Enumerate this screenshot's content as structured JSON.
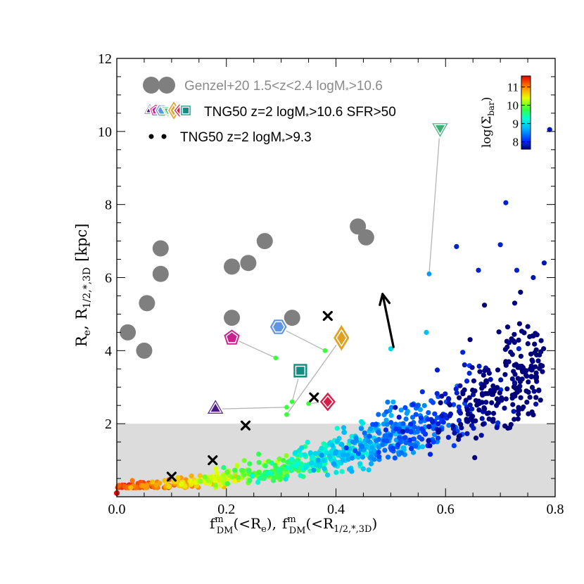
{
  "chart_data": {
    "type": "scatter",
    "xlabel_main": "f",
    "xlabel_sup": "m",
    "xlabel_sub": "DM",
    "xlabel_arg1": "(<R",
    "xlabel_arg1_sub": "e",
    "xlabel_arg1_end": "),",
    "xlabel_arg2": "(<R",
    "xlabel_arg2_sub": "1/2,*,3D",
    "xlabel_arg2_end": ")",
    "ylabel_r1": "R",
    "ylabel_r1_sub": "e",
    "ylabel_sep": ",",
    "ylabel_r2": "R",
    "ylabel_r2_sub": "1/2,*,3D",
    "ylabel_unit": "[kpc]",
    "xlim": [
      0.0,
      0.8
    ],
    "ylim": [
      0.0,
      12.0
    ],
    "x_ticks": [
      0.0,
      0.2,
      0.4,
      0.6,
      0.8
    ],
    "x_tick_labels": [
      "0.0",
      "0.2",
      "0.4",
      "0.6",
      "0.8"
    ],
    "y_ticks": [
      2,
      4,
      6,
      8,
      10,
      12
    ],
    "y_tick_labels": [
      "2",
      "4",
      "6",
      "8",
      "10",
      "12"
    ],
    "shaded_band": {
      "y_from": 0,
      "y_to": 2,
      "color": "#dcdcdc"
    },
    "legend": {
      "genzel": "Genzel+20 1.5<z<2.4 logM",
      "genzel_sub": "*",
      "genzel_end": ">10.6",
      "tng_massive": "TNG50 z=2 logM",
      "tng_massive_sub": "*",
      "tng_massive_end": ">10.6 SFR>50",
      "tng_all": "TNG50 z=2 logM",
      "tng_all_sub": "*",
      "tng_all_end": ">9.3"
    },
    "colorbar": {
      "label": "log(Σ",
      "label_sub": "bar",
      "label_end": ")",
      "ticks": [
        8,
        9,
        10,
        11
      ],
      "tick_labels": [
        "8",
        "9",
        "10",
        "11"
      ],
      "range": [
        7.6,
        11.6
      ]
    },
    "genzel_points": [
      {
        "x": 0.02,
        "y": 4.5
      },
      {
        "x": 0.05,
        "y": 4.0
      },
      {
        "x": 0.055,
        "y": 5.3
      },
      {
        "x": 0.08,
        "y": 6.1
      },
      {
        "x": 0.08,
        "y": 6.8
      },
      {
        "x": 0.21,
        "y": 6.3
      },
      {
        "x": 0.24,
        "y": 6.4
      },
      {
        "x": 0.27,
        "y": 7.0
      },
      {
        "x": 0.21,
        "y": 4.9
      },
      {
        "x": 0.32,
        "y": 4.9
      },
      {
        "x": 0.44,
        "y": 7.4
      },
      {
        "x": 0.455,
        "y": 7.1
      }
    ],
    "tng_massive": [
      {
        "marker": "triangle",
        "color": "#4b1a86",
        "x": 0.18,
        "y": 2.4,
        "x_3d": 0.31,
        "y_3d": 2.45
      },
      {
        "marker": "pentagon",
        "color": "#c8208c",
        "x": 0.21,
        "y": 4.35,
        "x_3d": 0.29,
        "y_3d": 3.8
      },
      {
        "marker": "hexagon",
        "color": "#5e95e6",
        "x": 0.295,
        "y": 4.65,
        "x_3d": 0.38,
        "y_3d": 4.0
      },
      {
        "marker": "square",
        "color": "#158c82",
        "x": 0.335,
        "y": 3.45,
        "x_3d": 0.32,
        "y_3d": 2.6
      },
      {
        "marker": "diamond",
        "color": "#e0a020",
        "x": 0.41,
        "y": 4.35,
        "x_3d": 0.31,
        "y_3d": 2.25
      },
      {
        "marker": "diamond",
        "color": "#d81c48",
        "x": 0.385,
        "y": 2.6,
        "x_3d": 0.35,
        "y_3d": 2.55
      },
      {
        "marker": "inverted_triangle",
        "color": "#37b074",
        "x": 0.59,
        "y": 10.1,
        "x_3d": 0.57,
        "y_3d": 6.1
      }
    ],
    "crosses": [
      {
        "x": 0.1,
        "y": 0.55
      },
      {
        "x": 0.175,
        "y": 1.0
      },
      {
        "x": 0.235,
        "y": 1.95
      },
      {
        "x": 0.36,
        "y": 2.72
      },
      {
        "x": 0.385,
        "y": 4.95
      }
    ],
    "arrow": {
      "x_from": 0.505,
      "y_from": 4.1,
      "x_to": 0.485,
      "y_to": 5.55
    },
    "scatter_population": {
      "n_points": 1000,
      "color_by": "log(Σ_bar)",
      "trend_note": "Re increases from ~0.3 kpc at f_DM≈0 to ~4 kpc at f_DM≈0.75; color goes from red (~11.5) at low f_DM to dark blue (~7.8) at high f_DM",
      "bright_outliers": [
        {
          "x": 0.71,
          "y": 8.05,
          "c": 7.9
        },
        {
          "x": 0.79,
          "y": 10.05,
          "c": 7.8
        },
        {
          "x": 0.66,
          "y": 6.2,
          "c": 7.9
        },
        {
          "x": 0.7,
          "y": 6.9,
          "c": 7.9
        },
        {
          "x": 0.62,
          "y": 6.85,
          "c": 7.9
        },
        {
          "x": 0.78,
          "y": 6.4,
          "c": 7.8
        },
        {
          "x": 0.76,
          "y": 6.0,
          "c": 7.8
        },
        {
          "x": 0.73,
          "y": 6.2,
          "c": 7.9
        },
        {
          "x": 0.565,
          "y": 4.5,
          "c": 8.8
        },
        {
          "x": 0.5,
          "y": 4.05,
          "c": 9.0
        }
      ]
    }
  }
}
